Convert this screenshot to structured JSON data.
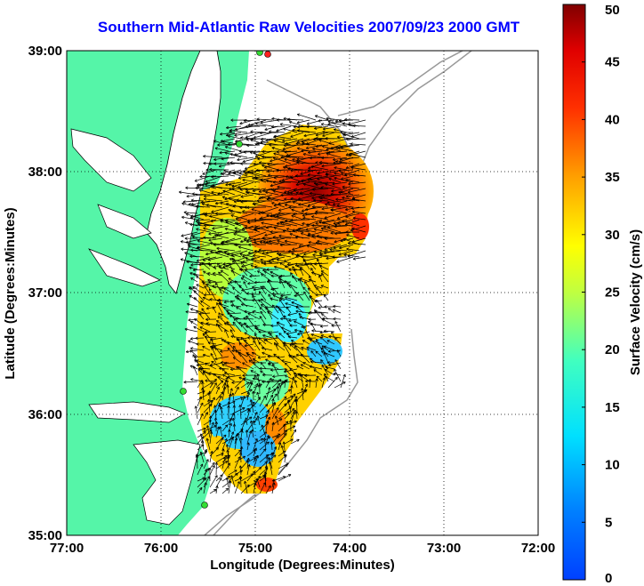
{
  "title": "Southern Mid-Atlantic Raw Velocities 2007/09/23 2000 GMT",
  "chart_data": {
    "type": "heatmap",
    "title": "Southern Mid-Atlantic Raw Velocities 2007/09/23 2000 GMT",
    "xlabel": "Longitude (Degrees:Minutes)",
    "ylabel": "Latitude (Degrees:Minutes)",
    "x_ticks": [
      "77:00",
      "76:00",
      "75:00",
      "74:00",
      "73:00",
      "72:00"
    ],
    "y_ticks": [
      "39:00",
      "38:00",
      "37:00",
      "36:00",
      "35:00"
    ],
    "xlim": [
      -77,
      -72
    ],
    "ylim": [
      35,
      39
    ],
    "grid": true,
    "colorbar": {
      "label": "Surface Velocity (cm/s)",
      "range": [
        0,
        50
      ],
      "ticks": [
        "0",
        "5",
        "10",
        "15",
        "20",
        "25",
        "30",
        "35",
        "40",
        "45",
        "50"
      ],
      "colormap": "jet"
    },
    "land_color": "#55f5a8",
    "water_color": "#ffffff",
    "station_color": "#33dd33"
  }
}
